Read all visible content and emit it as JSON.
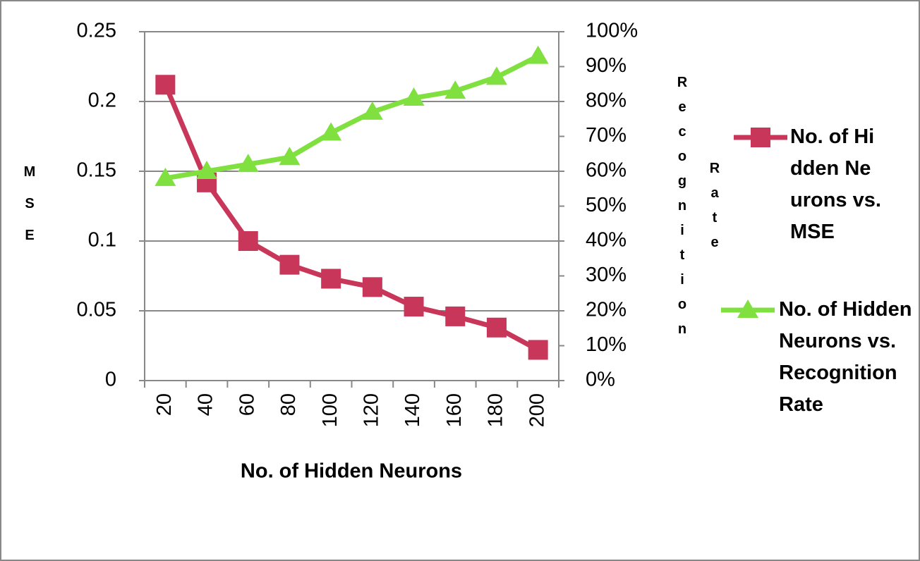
{
  "chart_data": {
    "type": "line",
    "x_label": "No. of Hidden Neurons",
    "y_label": "MSE",
    "y2_label": "Recognition Rate",
    "categories": [
      "20",
      "40",
      "60",
      "80",
      "100",
      "120",
      "140",
      "160",
      "180",
      "200"
    ],
    "series": [
      {
        "name": "No. of Hidden Neurons vs. MSE",
        "color": "#c8375a",
        "marker": "square",
        "values": [
          0.212,
          0.142,
          0.1,
          0.083,
          0.073,
          0.067,
          0.053,
          0.046,
          0.038,
          0.022
        ]
      },
      {
        "name": "No. of Hidden Neurons vs. Recognition Rate",
        "color": "#80e040",
        "marker": "triangle",
        "axis": "y2",
        "values": [
          58,
          60,
          62,
          64,
          71,
          77,
          81,
          83,
          87,
          93
        ]
      }
    ],
    "ylim": [
      0,
      0.25
    ],
    "yticks": [
      0,
      0.05,
      0.1,
      0.15,
      0.2,
      0.25
    ],
    "y2lim": [
      0,
      100
    ],
    "y2ticks": [
      {
        "value": 0,
        "label": "0%"
      },
      {
        "value": 10,
        "label": "10%"
      },
      {
        "value": 20,
        "label": "20%"
      },
      {
        "value": 30,
        "label": "30%"
      },
      {
        "value": 40,
        "label": "40%"
      },
      {
        "value": 50,
        "label": "50%"
      },
      {
        "value": 60,
        "label": "60%"
      },
      {
        "value": 70,
        "label": "70%"
      },
      {
        "value": 80,
        "label": "80%"
      },
      {
        "value": 90,
        "label": "90%"
      },
      {
        "value": 100,
        "label": "100%"
      }
    ],
    "grid": true
  }
}
